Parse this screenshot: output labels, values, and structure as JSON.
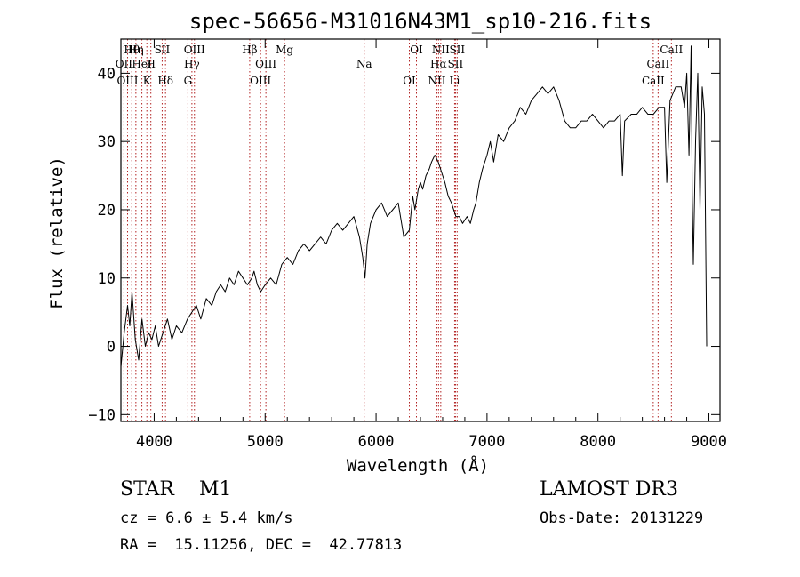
{
  "chart_data": {
    "type": "line",
    "title": "spec-56656-M31016N43M1_sp10-216.fits",
    "xlabel": "Wavelength (Å)",
    "ylabel": "Flux (relative)",
    "xlim": [
      3700,
      9100
    ],
    "ylim": [
      -11,
      45
    ],
    "xticks": [
      4000,
      5000,
      6000,
      7000,
      8000,
      9000
    ],
    "yticks": [
      -10,
      0,
      10,
      20,
      30,
      40
    ],
    "series": [
      {
        "name": "spectrum",
        "x": [
          3700,
          3730,
          3760,
          3780,
          3800,
          3830,
          3860,
          3890,
          3920,
          3950,
          3980,
          4010,
          4040,
          4080,
          4120,
          4160,
          4200,
          4250,
          4300,
          4340,
          4380,
          4420,
          4470,
          4520,
          4560,
          4600,
          4640,
          4680,
          4720,
          4760,
          4800,
          4840,
          4880,
          4900,
          4930,
          4960,
          5000,
          5050,
          5100,
          5150,
          5200,
          5250,
          5300,
          5350,
          5400,
          5450,
          5500,
          5550,
          5600,
          5650,
          5700,
          5750,
          5800,
          5850,
          5880,
          5900,
          5920,
          5950,
          6000,
          6050,
          6100,
          6150,
          6200,
          6250,
          6300,
          6330,
          6350,
          6380,
          6400,
          6420,
          6450,
          6480,
          6500,
          6530,
          6560,
          6580,
          6600,
          6620,
          6650,
          6680,
          6700,
          6720,
          6750,
          6780,
          6820,
          6850,
          6880,
          6900,
          6930,
          6960,
          7000,
          7030,
          7060,
          7100,
          7150,
          7200,
          7250,
          7300,
          7350,
          7400,
          7450,
          7500,
          7550,
          7600,
          7650,
          7700,
          7750,
          7800,
          7850,
          7900,
          7950,
          8000,
          8050,
          8100,
          8150,
          8200,
          8220,
          8240,
          8300,
          8350,
          8400,
          8450,
          8500,
          8550,
          8600,
          8620,
          8650,
          8700,
          8750,
          8780,
          8800,
          8820,
          8840,
          8850,
          8860,
          8880,
          8900,
          8920,
          8940,
          8960,
          8980
        ],
        "y": [
          -3,
          2,
          6,
          3,
          8,
          1,
          -2,
          4,
          0,
          2,
          1,
          3,
          0,
          2,
          4,
          1,
          3,
          2,
          4,
          5,
          6,
          4,
          7,
          6,
          8,
          9,
          8,
          10,
          9,
          11,
          10,
          9,
          10,
          11,
          9,
          8,
          9,
          10,
          9,
          12,
          13,
          12,
          14,
          15,
          14,
          15,
          16,
          15,
          17,
          18,
          17,
          18,
          19,
          16,
          13,
          10,
          15,
          18,
          20,
          21,
          19,
          20,
          21,
          16,
          17,
          22,
          20,
          23,
          24,
          23,
          25,
          26,
          27,
          28,
          27,
          26,
          25,
          24,
          22,
          21,
          20,
          19,
          19,
          18,
          19,
          18,
          20,
          21,
          24,
          26,
          28,
          30,
          27,
          31,
          30,
          32,
          33,
          35,
          34,
          36,
          37,
          38,
          37,
          38,
          36,
          33,
          32,
          32,
          33,
          33,
          34,
          33,
          32,
          33,
          33,
          34,
          25,
          33,
          34,
          34,
          35,
          34,
          34,
          35,
          35,
          24,
          36,
          38,
          38,
          35,
          40,
          28,
          44,
          22,
          12,
          30,
          40,
          20,
          38,
          34,
          0
        ],
        "units": "relative flux"
      }
    ],
    "lines": [
      {
        "label": "Hθ",
        "wavelength": 3798
      },
      {
        "label": "OII",
        "wavelength": 3727
      },
      {
        "label": "OIII",
        "wavelength": 3760
      },
      {
        "label": "Hη",
        "wavelength": 3835
      },
      {
        "label": "HeI",
        "wavelength": 3889
      },
      {
        "label": "K",
        "wavelength": 3934
      },
      {
        "label": "SII",
        "wavelength": 4072
      },
      {
        "label": "H",
        "wavelength": 3970
      },
      {
        "label": "Hδ",
        "wavelength": 4102
      },
      {
        "label": "OIII",
        "wavelength": 4363
      },
      {
        "label": "Hγ",
        "wavelength": 4340
      },
      {
        "label": "G",
        "wavelength": 4304
      },
      {
        "label": "Hβ",
        "wavelength": 4861
      },
      {
        "label": "OIII",
        "wavelength": 5007
      },
      {
        "label": "OIII",
        "wavelength": 4959
      },
      {
        "label": "Mg",
        "wavelength": 5175
      },
      {
        "label": "Na",
        "wavelength": 5893
      },
      {
        "label": "OI",
        "wavelength": 6300
      },
      {
        "label": "OI",
        "wavelength": 6364
      },
      {
        "label": "Hα",
        "wavelength": 6563
      },
      {
        "label": "NII",
        "wavelength": 6548
      },
      {
        "label": "NII",
        "wavelength": 6583
      },
      {
        "label": "SII",
        "wavelength": 6716
      },
      {
        "label": "Li",
        "wavelength": 6708
      },
      {
        "label": "SII",
        "wavelength": 6731
      },
      {
        "label": "CaII",
        "wavelength": 8542
      },
      {
        "label": "CaII",
        "wavelength": 8498
      },
      {
        "label": "CaII",
        "wavelength": 8662
      }
    ]
  },
  "info": {
    "object_class": "STAR    M1",
    "survey": "LAMOST DR3",
    "redshift": "cz = 6.6 ± 5.4 km/s",
    "obs_date": "Obs-Date: 20131229",
    "coords": "RA =  15.11256, DEC =  42.77813"
  },
  "colors": {
    "spectrum": "#000000",
    "line_markers": "#b22222"
  }
}
